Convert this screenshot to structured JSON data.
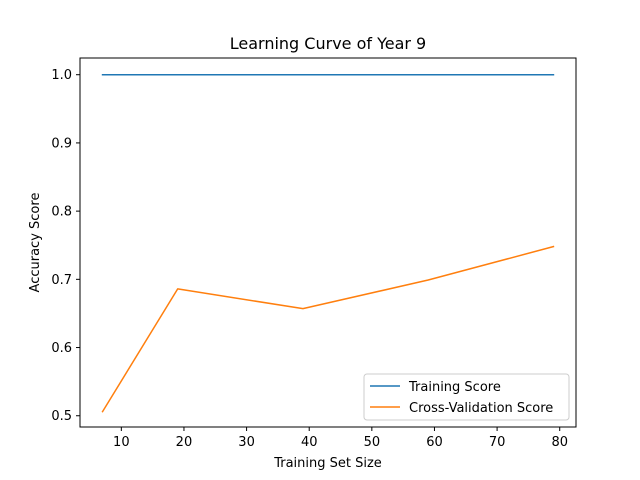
{
  "chart_data": {
    "type": "line",
    "title": "Learning Curve of Year 9",
    "xlabel": "Training Set Size",
    "ylabel": "Accuracy Score",
    "xlim": [
      3.4,
      82.6
    ],
    "ylim": [
      0.4835,
      1.0245
    ],
    "xticks": [
      10,
      20,
      30,
      40,
      50,
      60,
      70,
      80
    ],
    "yticks": [
      0.5,
      0.6,
      0.7,
      0.8,
      0.9,
      1.0
    ],
    "ytick_labels": [
      "0.5",
      "0.6",
      "0.7",
      "0.8",
      "0.9",
      "1.0"
    ],
    "grid": false,
    "legend_position": "lower-right",
    "x": [
      7,
      19,
      39,
      59,
      79
    ],
    "series": [
      {
        "name": "Training Score",
        "color": "#1f77b4",
        "values": [
          1.0,
          1.0,
          1.0,
          1.0,
          1.0
        ]
      },
      {
        "name": "Cross-Validation Score",
        "color": "#ff7f0e",
        "values": [
          0.506,
          0.686,
          0.657,
          0.699,
          0.748
        ]
      }
    ]
  }
}
